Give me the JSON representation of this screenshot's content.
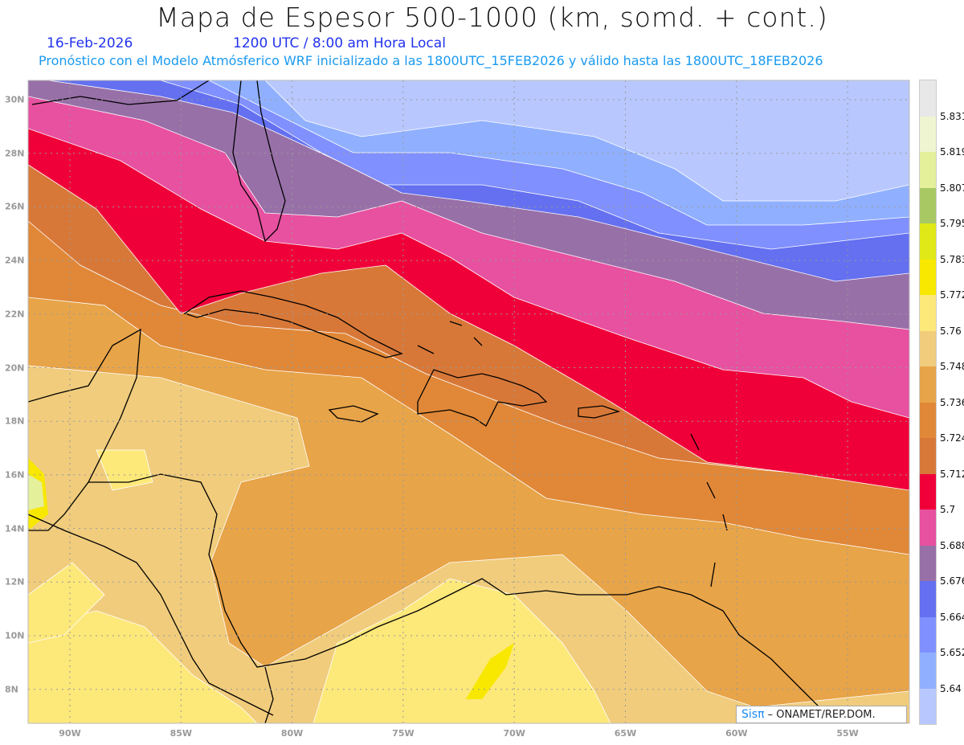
{
  "header": {
    "title": "Mapa de Espesor 500-1000 (km, somd. + cont.)",
    "date": "16-Feb-2026",
    "time": "1200 UTC / 8:00 am Hora Local",
    "subtitle": "Pronóstico con el Modelo Atmósferico WRF inicializado a las 1800UTC_15FEB2026 y válido hasta las  1800UTC_18FEB2026"
  },
  "colorbar": {
    "colors": [
      "#e8e8e8",
      "#eef5d0",
      "#e4f09a",
      "#a8c864",
      "#e0e818",
      "#f8e800",
      "#fde87a",
      "#f0cc7c",
      "#e8a448",
      "#e08838",
      "#d87838",
      "#f00038",
      "#e850a0",
      "#9870a8",
      "#6470f0",
      "#8090ff",
      "#90b0ff",
      "#b8c8ff"
    ],
    "labels": [
      "5.831",
      "5.819",
      "5.807",
      "5.795",
      "5.783",
      "5.772",
      "5.76",
      "5.748",
      "5.736",
      "5.724",
      "5.712",
      "5.7",
      "5.688",
      "5.676",
      "5.664",
      "5.652",
      "5.64"
    ]
  },
  "axes": {
    "lat_labels": [
      "30N",
      "28N",
      "26N",
      "24N",
      "22N",
      "20N",
      "18N",
      "16N",
      "14N",
      "12N",
      "10N",
      "8N"
    ],
    "lon_labels": [
      "90W",
      "85W",
      "80W",
      "75W",
      "70W",
      "65W",
      "60W",
      "55W"
    ]
  },
  "credit": {
    "brand": "Sisπ",
    "text": " – ONAMET/REP.DOM."
  }
}
